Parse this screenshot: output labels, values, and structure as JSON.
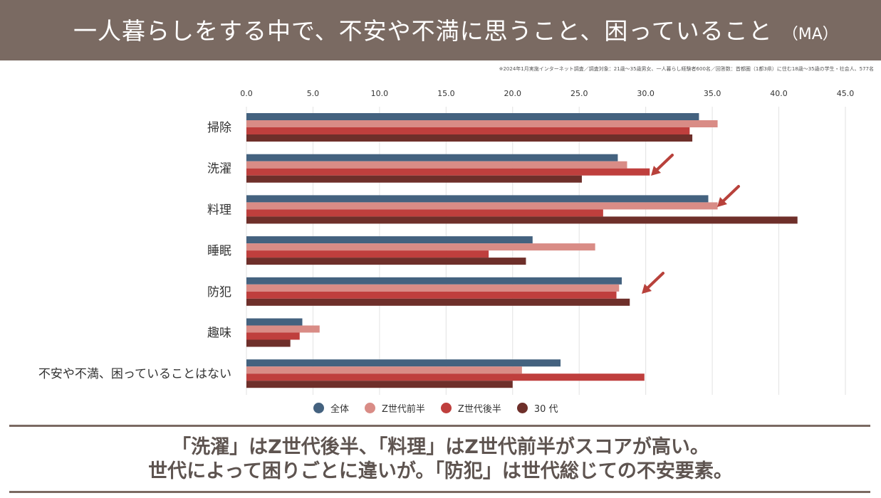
{
  "header": {
    "title": "一人暮らしをする中で、不安や不満に思うこと、困っていること",
    "title_suffix": "（MA）"
  },
  "note": "※2024年1月実施インターネット調査／調査対象：21歳〜35歳男女、一人暮らし経験者600名／回答数：首都圏（1都3県）に住む18歳〜35歳の学生・社会人、577名",
  "colors": {
    "header_bg": "#7a6a62",
    "series": [
      "#44627f",
      "#d98c86",
      "#bf3f3d",
      "#6e2f2a"
    ],
    "arrow": "#b8413b",
    "grid": "#e2e2e2"
  },
  "chart_data": {
    "type": "bar",
    "orientation": "horizontal",
    "categories": [
      "掃除",
      "洗濯",
      "料理",
      "睡眠",
      "防犯",
      "趣味",
      "不安や不満、困っていることはない"
    ],
    "series": [
      {
        "name": "全体",
        "values": [
          34.0,
          27.9,
          34.7,
          21.5,
          28.2,
          4.2,
          23.6
        ]
      },
      {
        "name": "Z世代前半",
        "values": [
          35.4,
          28.6,
          35.4,
          26.2,
          28.0,
          5.5,
          20.7
        ]
      },
      {
        "name": "Z世代後半",
        "values": [
          33.3,
          30.3,
          26.8,
          18.2,
          27.8,
          4.0,
          29.9
        ]
      },
      {
        "name": "30 代",
        "values": [
          33.5,
          25.2,
          41.4,
          21.0,
          28.8,
          3.3,
          20.0
        ]
      }
    ],
    "xlim": [
      0,
      45
    ],
    "ticks": [
      "0.0",
      "5.0",
      "10.0",
      "15.0",
      "20.0",
      "25.0",
      "30.0",
      "35.0",
      "40.0",
      "45.0"
    ],
    "grid": true,
    "legend_position": "bottom"
  },
  "conclusion": {
    "line1": "「洗濯」はZ世代後半、「料理」はZ世代前半がスコアが高い。",
    "line2": "世代によって困りごとに違いが。「防犯」は世代総じての不安要素。"
  }
}
